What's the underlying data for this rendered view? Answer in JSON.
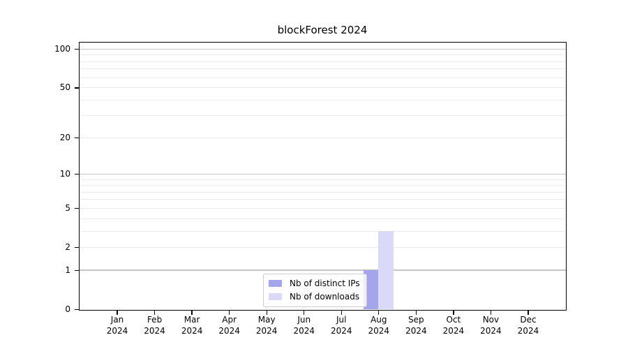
{
  "chart_data": {
    "type": "bar",
    "title": "blockForest 2024",
    "months": [
      "Jan",
      "Feb",
      "Mar",
      "Apr",
      "May",
      "Jun",
      "Jul",
      "Aug",
      "Sep",
      "Oct",
      "Nov",
      "Dec"
    ],
    "year": "2024",
    "series": [
      {
        "name": "Nb of distinct IPs",
        "color": "#a5a5ec",
        "values": [
          0,
          0,
          0,
          0,
          0,
          0,
          0,
          1,
          0,
          0,
          0,
          0
        ]
      },
      {
        "name": "Nb of downloads",
        "color": "#dadaf8",
        "values": [
          0,
          0,
          0,
          0,
          0,
          0,
          0,
          3,
          0,
          0,
          0,
          0
        ]
      }
    ],
    "xlabel": "",
    "ylabel": "",
    "y_axis": {
      "scale": "log1p",
      "ticks": [
        0,
        1,
        2,
        5,
        10,
        20,
        50,
        100
      ],
      "ylim": [
        0,
        113
      ],
      "decade_gridlines": [
        1,
        10,
        100
      ],
      "minor_gridlines": [
        2,
        3,
        4,
        5,
        6,
        7,
        8,
        9,
        20,
        30,
        40,
        50,
        60,
        70,
        80,
        90
      ]
    },
    "legend": {
      "position": "inside-bottom-center"
    },
    "colors": {
      "decade_grid": "#c6c6c6",
      "minor_grid": "#ececec",
      "axis": "#000000",
      "legend_border": "#cccccc"
    }
  }
}
